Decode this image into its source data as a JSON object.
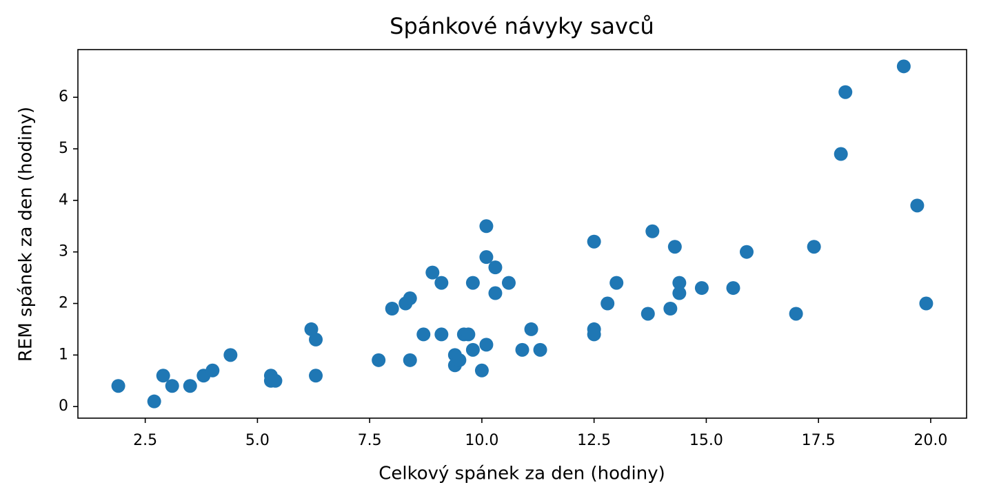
{
  "chart_data": {
    "type": "scatter",
    "title": "Spánkové návyky savců",
    "x_label": "Celkový spánek za den (hodiny)",
    "y_label": "REM spánek za den (hodiny)",
    "color": "#1f77b4",
    "grid": false,
    "xlim": [
      1.0,
      20.8
    ],
    "ylim": [
      -0.225,
      6.925
    ],
    "xticks": [
      2.5,
      {
        "value": 5,
        "label": "5.0"
      },
      7.5,
      {
        "value": 10,
        "label": "10.0"
      },
      12.5,
      {
        "value": 15,
        "label": "15.0"
      },
      17.5,
      {
        "value": 20,
        "label": "20.0"
      }
    ],
    "yticks": [
      0,
      1,
      2,
      3,
      4,
      5,
      6
    ],
    "x": [
      1.9,
      2.7,
      2.9,
      3.1,
      3.5,
      3.8,
      4.0,
      4.4,
      5.3,
      5.3,
      5.4,
      6.2,
      6.3,
      6.3,
      7.7,
      8.0,
      8.3,
      8.4,
      8.4,
      8.7,
      8.9,
      9.1,
      9.1,
      9.4,
      9.4,
      9.5,
      9.6,
      9.7,
      9.8,
      9.8,
      10.0,
      10.1,
      10.1,
      10.1,
      10.3,
      10.3,
      10.6,
      10.9,
      11.1,
      11.3,
      12.5,
      12.5,
      12.5,
      12.8,
      13.0,
      13.7,
      13.8,
      14.2,
      14.3,
      14.4,
      14.4,
      14.9,
      15.6,
      15.9,
      17.0,
      17.4,
      18.0,
      18.1,
      19.4,
      19.7,
      19.9
    ],
    "values": [
      0.4,
      0.1,
      0.6,
      0.4,
      0.4,
      0.6,
      0.7,
      1.0,
      0.6,
      0.5,
      0.5,
      1.5,
      1.3,
      0.6,
      0.9,
      1.9,
      2.0,
      2.1,
      0.9,
      1.4,
      2.6,
      2.4,
      1.4,
      1.0,
      0.8,
      0.9,
      1.4,
      1.4,
      1.1,
      2.4,
      0.7,
      3.5,
      2.9,
      1.2,
      2.7,
      2.2,
      2.4,
      1.1,
      1.5,
      1.1,
      3.2,
      1.5,
      1.4,
      2.0,
      2.4,
      1.8,
      3.4,
      1.9,
      3.1,
      2.4,
      2.2,
      2.3,
      2.3,
      3.0,
      1.8,
      3.1,
      4.9,
      6.1,
      6.6,
      3.9,
      2.0
    ]
  }
}
